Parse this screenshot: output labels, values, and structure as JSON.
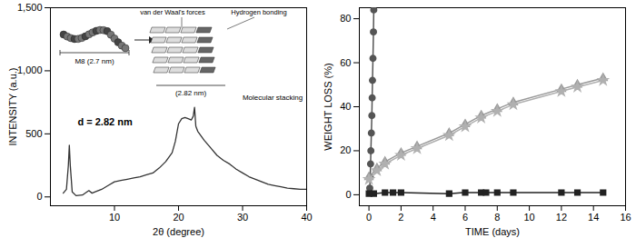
{
  "chart_data": [
    {
      "type": "line",
      "x_label": "2θ (degree)",
      "y_label": "INTENSITY (a.u.)",
      "xlim": [
        0,
        40
      ],
      "xticks": [
        10,
        20,
        30,
        40
      ],
      "ylim": [
        -70,
        1500
      ],
      "yticks": [
        0,
        500,
        1000,
        1500
      ],
      "series": [
        {
          "color": "#333333",
          "x": [
            2,
            2.5,
            2.8,
            2.95,
            3.1,
            3.4,
            4,
            5,
            6,
            6.5,
            7,
            8,
            9,
            10,
            11,
            12,
            13,
            14,
            15,
            16,
            17,
            18,
            19,
            19.5,
            20,
            20.5,
            21,
            21.5,
            22,
            22.3,
            22.5,
            22.7,
            23,
            24,
            25,
            26,
            27,
            28,
            29,
            30,
            31,
            32,
            33,
            34,
            35,
            36,
            37,
            38,
            39,
            40
          ],
          "values": [
            30,
            60,
            250,
            410,
            250,
            40,
            10,
            15,
            50,
            30,
            40,
            60,
            90,
            120,
            130,
            140,
            150,
            160,
            175,
            190,
            230,
            280,
            350,
            440,
            580,
            620,
            630,
            620,
            610,
            640,
            710,
            560,
            520,
            450,
            390,
            330,
            290,
            260,
            220,
            190,
            160,
            140,
            120,
            100,
            90,
            80,
            70,
            65,
            60,
            60
          ]
        }
      ],
      "annotations": [
        "d = 2.82 nm"
      ],
      "inset": {
        "molecule_label": "M8 (2.7 nm)",
        "labels": [
          "van der Waal's forces",
          "Hydrogen bonding"
        ],
        "spacing": "(2.82 nm)",
        "caption": "Molecular stacking"
      }
    },
    {
      "type": "line",
      "x_label": "TIME (days)",
      "y_label": "WEIGHT LOSS (%)",
      "xlim": [
        -0.6,
        16
      ],
      "xticks": [
        0,
        2,
        4,
        6,
        8,
        10,
        12,
        14,
        16
      ],
      "ylim": [
        -5,
        85
      ],
      "yticks": [
        0,
        20,
        40,
        60,
        80
      ],
      "series": [
        {
          "color": "#555555",
          "marker": "circle",
          "x": [
            0.05,
            0.08,
            0.1,
            0.12,
            0.15,
            0.18,
            0.2,
            0.22,
            0.25,
            0.28,
            0.3
          ],
          "values": [
            3,
            8,
            14,
            20,
            28,
            36,
            44,
            52,
            62,
            74,
            84
          ]
        },
        {
          "color": "#222222",
          "marker": "square",
          "x": [
            0,
            0.3,
            1,
            1.5,
            2,
            5,
            6,
            7,
            7.3,
            8,
            9,
            12,
            13,
            14.6
          ],
          "values": [
            0.5,
            0.5,
            1,
            1,
            1,
            0.5,
            1,
            1,
            1,
            1,
            1,
            1,
            1,
            1
          ]
        },
        {
          "color": "#999999",
          "marker": "triangle",
          "x": [
            0,
            0.5,
            1,
            2,
            3,
            5,
            6,
            7,
            8,
            9,
            12,
            13,
            14.6
          ],
          "values": [
            8,
            12,
            15,
            19,
            22,
            28,
            32,
            36,
            39,
            42,
            48,
            50,
            53
          ]
        },
        {
          "color": "#b0b0b0",
          "marker": "star",
          "x": [
            0,
            0.5,
            1,
            2,
            3,
            5,
            6,
            7,
            8,
            9,
            12,
            13,
            14.6
          ],
          "values": [
            7,
            11,
            14,
            18,
            21,
            27,
            31,
            35,
            38,
            41,
            47,
            49,
            52
          ]
        }
      ]
    }
  ]
}
